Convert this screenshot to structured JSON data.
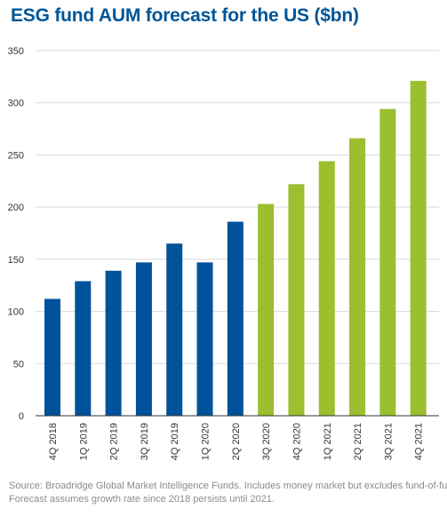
{
  "chart_data": {
    "type": "bar",
    "title": "ESG fund AUM forecast for the US ($bn)",
    "xlabel": "",
    "ylabel": "",
    "ylim": [
      0,
      350
    ],
    "yticks": [
      0,
      50,
      100,
      150,
      200,
      250,
      300,
      350
    ],
    "grid": true,
    "categories": [
      "4Q 2018",
      "1Q 2019",
      "2Q 2019",
      "3Q 2019",
      "4Q 2019",
      "1Q 2020",
      "2Q 2020",
      "3Q 2020",
      "4Q 2020",
      "1Q 2021",
      "2Q 2021",
      "3Q 2021",
      "4Q 2021"
    ],
    "values": [
      112,
      129,
      139,
      147,
      165,
      147,
      186,
      203,
      222,
      244,
      266,
      294,
      321
    ],
    "bar_groups": [
      "actual",
      "actual",
      "actual",
      "actual",
      "actual",
      "actual",
      "actual",
      "forecast",
      "forecast",
      "forecast",
      "forecast",
      "forecast",
      "forecast"
    ],
    "colors": {
      "actual": "#00529b",
      "forecast": "#9bbf2f",
      "grid": "#d9d9d9",
      "axis": "#333333"
    },
    "source": [
      "Source: Broadridge Global Market Intelligence Funds. Includes money market but excludes fund-of-funds.",
      "Forecast assumes growth rate since 2018 persists until 2021."
    ]
  }
}
